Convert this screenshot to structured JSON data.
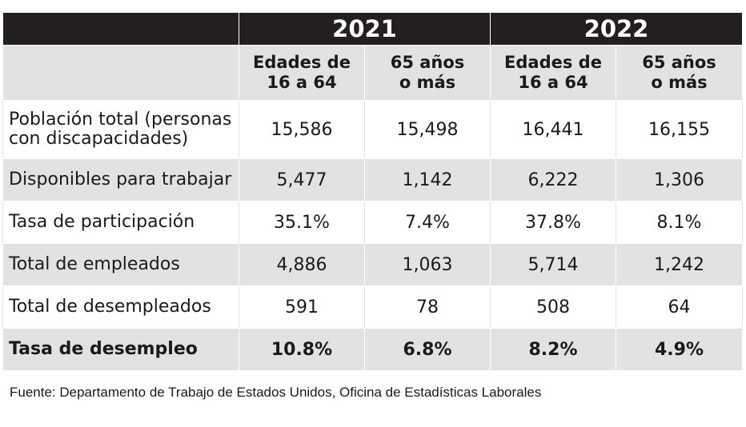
{
  "table": {
    "years": [
      "2021",
      "2022"
    ],
    "subheaders": [
      {
        "line1": "Edades de",
        "line2": "16 a 64"
      },
      {
        "line1": "65 años",
        "line2": "o más"
      },
      {
        "line1": "Edades de",
        "line2": "16 a 64"
      },
      {
        "line1": "65 años",
        "line2": "o más"
      }
    ],
    "rows": [
      {
        "label_line1": "Población total (personas",
        "label_line2": "con discapacidades)",
        "values": [
          "15,586",
          "15,498",
          "16,441",
          "16,155"
        ]
      },
      {
        "label_line1": "Disponibles para trabajar",
        "label_line2": "",
        "values": [
          "5,477",
          "1,142",
          "6,222",
          "1,306"
        ]
      },
      {
        "label_line1": "Tasa de participación",
        "label_line2": "",
        "values": [
          "35.1%",
          "7.4%",
          "37.8%",
          "8.1%"
        ]
      },
      {
        "label_line1": "Total de empleados",
        "label_line2": "",
        "values": [
          "4,886",
          "1,063",
          "5,714",
          "1,242"
        ]
      },
      {
        "label_line1": "Total de desempleados",
        "label_line2": "",
        "values": [
          "591",
          "78",
          "508",
          "64"
        ]
      },
      {
        "label_line1": "Tasa de desempleo",
        "label_line2": "",
        "values": [
          "10.8%",
          "6.8%",
          "8.2%",
          "4.9%"
        ]
      }
    ]
  },
  "source": "Fuente: Departamento de Trabajo de Estados Unidos, Oficina de Estadísticas Laborales"
}
